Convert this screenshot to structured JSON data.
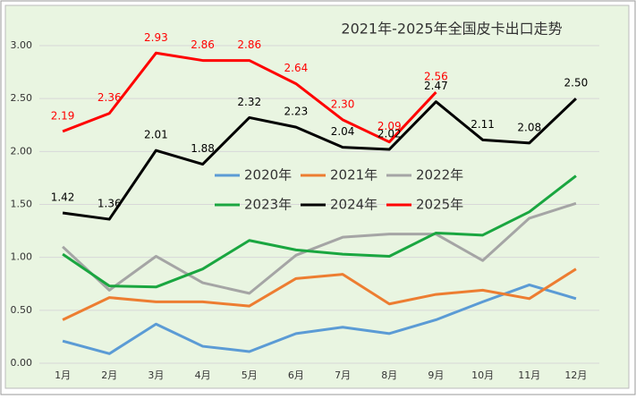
{
  "chart_data": {
    "type": "line",
    "title": "2021年-2025年全国皮卡出口走势",
    "categories": [
      "1月",
      "2月",
      "3月",
      "4月",
      "5月",
      "6月",
      "7月",
      "8月",
      "9月",
      "10月",
      "11月",
      "12月"
    ],
    "series": [
      {
        "name": "2020年",
        "color": "#5b9bd5",
        "values": [
          0.21,
          0.09,
          0.37,
          0.16,
          0.11,
          0.28,
          0.34,
          0.28,
          0.41,
          0.58,
          0.74,
          0.61
        ]
      },
      {
        "name": "2021年",
        "color": "#ed7d31",
        "values": [
          0.41,
          0.62,
          0.58,
          0.58,
          0.54,
          0.8,
          0.84,
          0.56,
          0.65,
          0.69,
          0.61,
          0.89
        ]
      },
      {
        "name": "2022年",
        "color": "#a5a5a5",
        "values": [
          1.1,
          0.69,
          1.01,
          0.76,
          0.66,
          1.02,
          1.19,
          1.22,
          1.22,
          0.97,
          1.37,
          1.51
        ]
      },
      {
        "name": "2023年",
        "color": "#1aa640",
        "values": [
          1.03,
          0.73,
          0.72,
          0.89,
          1.16,
          1.07,
          1.03,
          1.01,
          1.23,
          1.21,
          1.43,
          1.77
        ]
      },
      {
        "name": "2024年",
        "color": "#000000",
        "values": [
          1.42,
          1.36,
          2.01,
          1.88,
          2.32,
          2.23,
          2.04,
          2.02,
          2.47,
          2.11,
          2.08,
          2.5
        ],
        "value_labels": [
          "1.42",
          "1.36",
          "2.01",
          "1.88",
          "2.32",
          "2.23",
          "2.04",
          "2.02",
          "2.47",
          "2.11",
          "2.08",
          "2.50"
        ]
      },
      {
        "name": "2025年",
        "color": "#ff0000",
        "values": [
          2.19,
          2.36,
          2.93,
          2.86,
          2.86,
          2.64,
          2.3,
          2.09,
          2.56,
          null,
          null,
          null
        ],
        "value_labels": [
          "2.19",
          "2.36",
          "2.93",
          "2.86",
          "2.86",
          "2.64",
          "2.30",
          "2.09",
          "2.56",
          null,
          null,
          null
        ]
      }
    ],
    "ylim": [
      0,
      3
    ],
    "yticks": [
      {
        "value": 0,
        "label": "0.00"
      },
      {
        "value": 0.5,
        "label": "0.50"
      },
      {
        "value": 1,
        "label": "1.00"
      },
      {
        "value": 1.5,
        "label": "1.50"
      },
      {
        "value": 2,
        "label": "2.00"
      },
      {
        "value": 2.5,
        "label": "2.50"
      },
      {
        "value": 3,
        "label": "3.00"
      }
    ],
    "grid": true,
    "legend": "center"
  }
}
